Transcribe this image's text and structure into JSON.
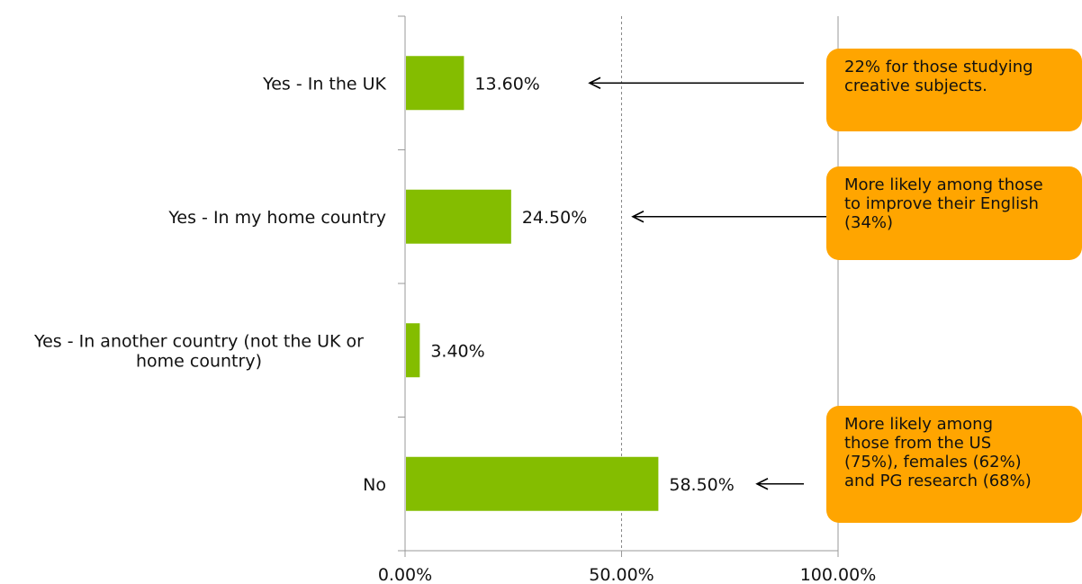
{
  "chart_data": {
    "type": "bar",
    "orientation": "horizontal",
    "categories": [
      "Yes - In the UK",
      "Yes - In my home country",
      "Yes - In another country (not the UK or home country)",
      "No"
    ],
    "category_lines": [
      [
        "Yes - In the UK"
      ],
      [
        "Yes - In my home country"
      ],
      [
        "Yes - In another country (not the UK or",
        "home country)"
      ],
      [
        "No"
      ]
    ],
    "values": [
      13.6,
      24.5,
      3.4,
      58.5
    ],
    "data_labels": [
      "13.60%",
      "24.50%",
      "3.40%",
      "58.50%"
    ],
    "xlim": [
      0,
      100
    ],
    "x_ticks": [
      0,
      50,
      100
    ],
    "x_tick_labels": [
      "0.00%",
      "50.00%",
      "100.00%"
    ],
    "reference_line": 50,
    "grid": false,
    "bar_color": "#84bd00",
    "title": "",
    "xlabel": "",
    "ylabel": ""
  },
  "callouts": [
    {
      "text": "22% for those studying\ncreative subjects.",
      "category_index": 0
    },
    {
      "text": "More likely among those\nto improve their English\n(34%)",
      "category_index": 1
    },
    {
      "text": "More likely among\nthose from the US\n(75%), females (62%)\nand PG research (68%)",
      "category_index": 3
    }
  ],
  "callout_color": "#ffa500"
}
